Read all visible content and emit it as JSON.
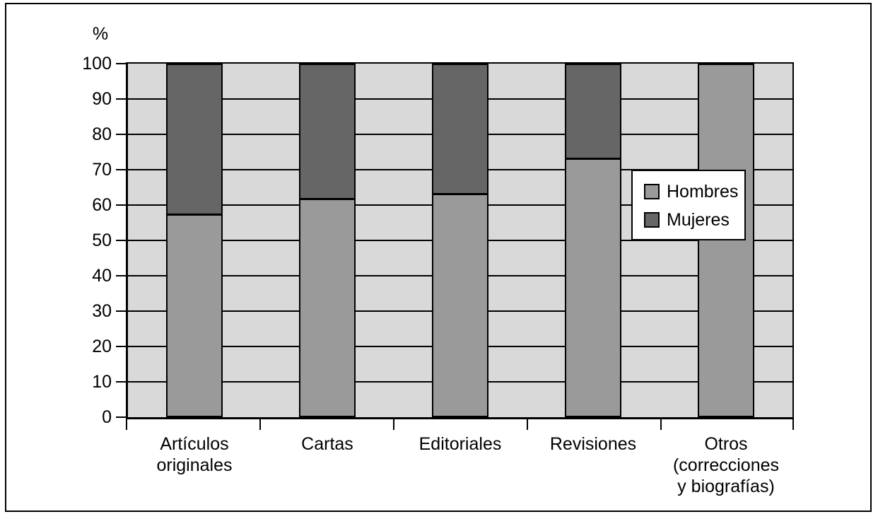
{
  "chart": {
    "unit_label": "%",
    "plot_background": "#d9d9d9",
    "grid_color": "#000000",
    "frame_color": "#000000"
  },
  "chart_data": {
    "type": "bar",
    "stacked": true,
    "title": "",
    "xlabel": "",
    "ylabel": "%",
    "ylim": [
      0,
      100
    ],
    "y_ticks": [
      0,
      10,
      20,
      30,
      40,
      50,
      60,
      70,
      80,
      90,
      100
    ],
    "grid": true,
    "legend_position": "middle-right",
    "categories": [
      "Artículos\noriginales",
      "Cartas",
      "Editoriales",
      "Revisiones",
      "Otros\n(correcciones\ny biografías)"
    ],
    "series": [
      {
        "name": "Hombres",
        "color": "#9a9a9a",
        "values": [
          57,
          61.5,
          63,
          73,
          100
        ]
      },
      {
        "name": "Mujeres",
        "color": "#666666",
        "values": [
          43,
          38.5,
          37,
          27,
          0
        ]
      }
    ]
  }
}
